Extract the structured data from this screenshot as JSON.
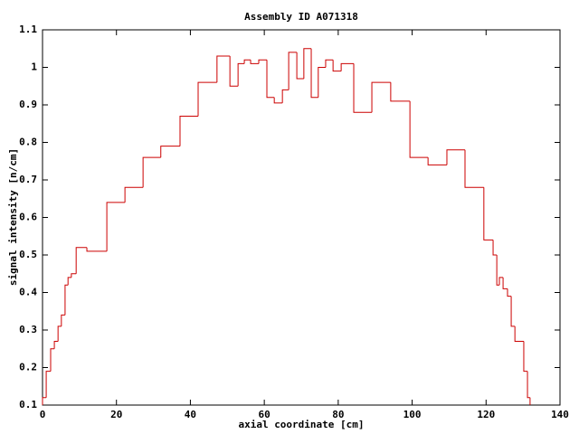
{
  "chart_data": {
    "type": "histogram",
    "title": "Assembly ID A071318",
    "x_label": "axial coordinate [cm]",
    "y_label": "signal intensity [n/cm]",
    "color": "#cc0000",
    "bins": [
      0,
      1,
      2.2,
      3.2,
      4.2,
      5.1,
      6.1,
      6.9,
      7.8,
      9.1,
      12,
      17.4,
      22.3,
      27.2,
      32,
      37.2,
      42.1,
      47.2,
      50.7,
      52.9,
      54.6,
      56.3,
      58.5,
      60.7,
      62.7,
      64.9,
      66.6,
      68.8,
      70.7,
      72.7,
      74.6,
      76.6,
      78.6,
      80.8,
      84.2,
      89.1,
      94.2,
      99.4,
      104.3,
      109.4,
      114.3,
      119.4,
      121.9,
      122.9,
      123.6,
      124.6,
      125.8,
      126.8,
      127.8,
      130.2,
      131.2,
      131.9
    ],
    "values": [
      0.12,
      0.19,
      0.25,
      0.27,
      0.31,
      0.34,
      0.42,
      0.44,
      0.45,
      0.52,
      0.51,
      0.64,
      0.68,
      0.76,
      0.79,
      0.87,
      0.96,
      1.03,
      0.95,
      1.01,
      1.02,
      1.01,
      1.02,
      0.92,
      0.905,
      0.94,
      1.04,
      0.97,
      1.05,
      0.92,
      1.0,
      1.02,
      0.99,
      1.01,
      0.88,
      0.96,
      0.91,
      0.76,
      0.74,
      0.78,
      0.68,
      0.54,
      0.5,
      0.42,
      0.44,
      0.41,
      0.39,
      0.31,
      0.27,
      0.19,
      0.12
    ],
    "xlim": [
      0,
      140
    ],
    "xticks": [
      0,
      20,
      40,
      60,
      80,
      100,
      120,
      140
    ],
    "ylim": [
      0.1,
      1.1
    ],
    "yticks": [
      0.1,
      0.2,
      0.3,
      0.4,
      0.5,
      0.6,
      0.7,
      0.8,
      0.9,
      1,
      1.1
    ]
  }
}
